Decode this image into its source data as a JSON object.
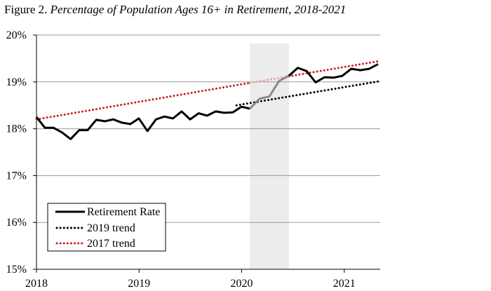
{
  "title": {
    "prefix": "Figure 2. ",
    "text": "Percentage of Population Ages 16+ in Retirement, 2018-2021"
  },
  "chart_data": {
    "type": "line",
    "title": "Figure 2. Percentage of Population Ages 16+ in Retirement, 2018-2021",
    "xlabel": "",
    "ylabel": "",
    "xlim": [
      2018.0,
      2021.33
    ],
    "ylim": [
      15,
      20
    ],
    "x_ticks": [
      {
        "value": 2018,
        "label": "2018"
      },
      {
        "value": 2019,
        "label": "2019"
      },
      {
        "value": 2020,
        "label": "2020"
      },
      {
        "value": 2021,
        "label": "2021"
      }
    ],
    "y_ticks": [
      {
        "value": 20,
        "label": "20%"
      },
      {
        "value": 19,
        "label": "19%"
      },
      {
        "value": 18,
        "label": "18%"
      },
      {
        "value": 17,
        "label": "17%"
      },
      {
        "value": 16,
        "label": "16%"
      },
      {
        "value": 15,
        "label": "15%"
      }
    ],
    "grid": "horizontal",
    "legend_position": "bottom-left",
    "shaded_period": {
      "x_start": 2020.08,
      "x_end": 2020.46,
      "color": "#ececec"
    },
    "series": [
      {
        "name": "Retirement Rate",
        "style": "solid",
        "color": "#000000",
        "segments": [
          {
            "color": "#000000",
            "x_start": 2018.0,
            "x_end": 2020.08,
            "values": [
              18.25,
              18.02,
              18.02,
              17.92,
              17.78,
              17.97,
              17.97,
              18.19,
              18.16,
              18.2,
              18.13,
              18.1,
              18.22,
              17.95,
              18.2,
              18.26,
              18.22,
              18.37,
              18.2,
              18.33,
              18.28,
              18.37,
              18.34,
              18.35,
              18.47,
              18.43
            ]
          },
          {
            "color": "#888888",
            "x_start": 2020.08,
            "x_end": 2020.46,
            "values": [
              18.43,
              18.64,
              18.69,
              19.02,
              19.13
            ]
          },
          {
            "color": "#000000",
            "x_start": 2020.46,
            "x_end": 2021.33,
            "values": [
              19.13,
              19.3,
              19.23,
              18.99,
              19.1,
              19.09,
              19.13,
              19.28,
              19.25,
              19.28,
              19.38
            ]
          }
        ]
      },
      {
        "name": "2019 trend",
        "style": "dotted",
        "color": "#000000",
        "x": [
          2019.95,
          2021.33
        ],
        "values": [
          18.5,
          19.01
        ]
      },
      {
        "name": "2017 trend",
        "style": "dotted",
        "color": "#cc1f2a",
        "segments": [
          {
            "color": "#cc1f2a",
            "x": [
              2018.0,
              2020.08
            ],
            "values": [
              18.2,
              18.98
            ]
          },
          {
            "color": "#f0a0a0",
            "x": [
              2020.08,
              2020.46
            ],
            "values": [
              18.98,
              19.12
            ]
          },
          {
            "color": "#cc1f2a",
            "x": [
              2020.46,
              2021.33
            ],
            "values": [
              19.12,
              19.44
            ]
          }
        ]
      }
    ]
  },
  "legend": {
    "items": [
      {
        "label": "Retirement Rate",
        "style": "solid",
        "color": "#000000"
      },
      {
        "label": "2019 trend",
        "style": "dotted",
        "color": "#000000"
      },
      {
        "label": "2017 trend",
        "style": "dotted",
        "color": "#cc1f2a"
      }
    ]
  }
}
